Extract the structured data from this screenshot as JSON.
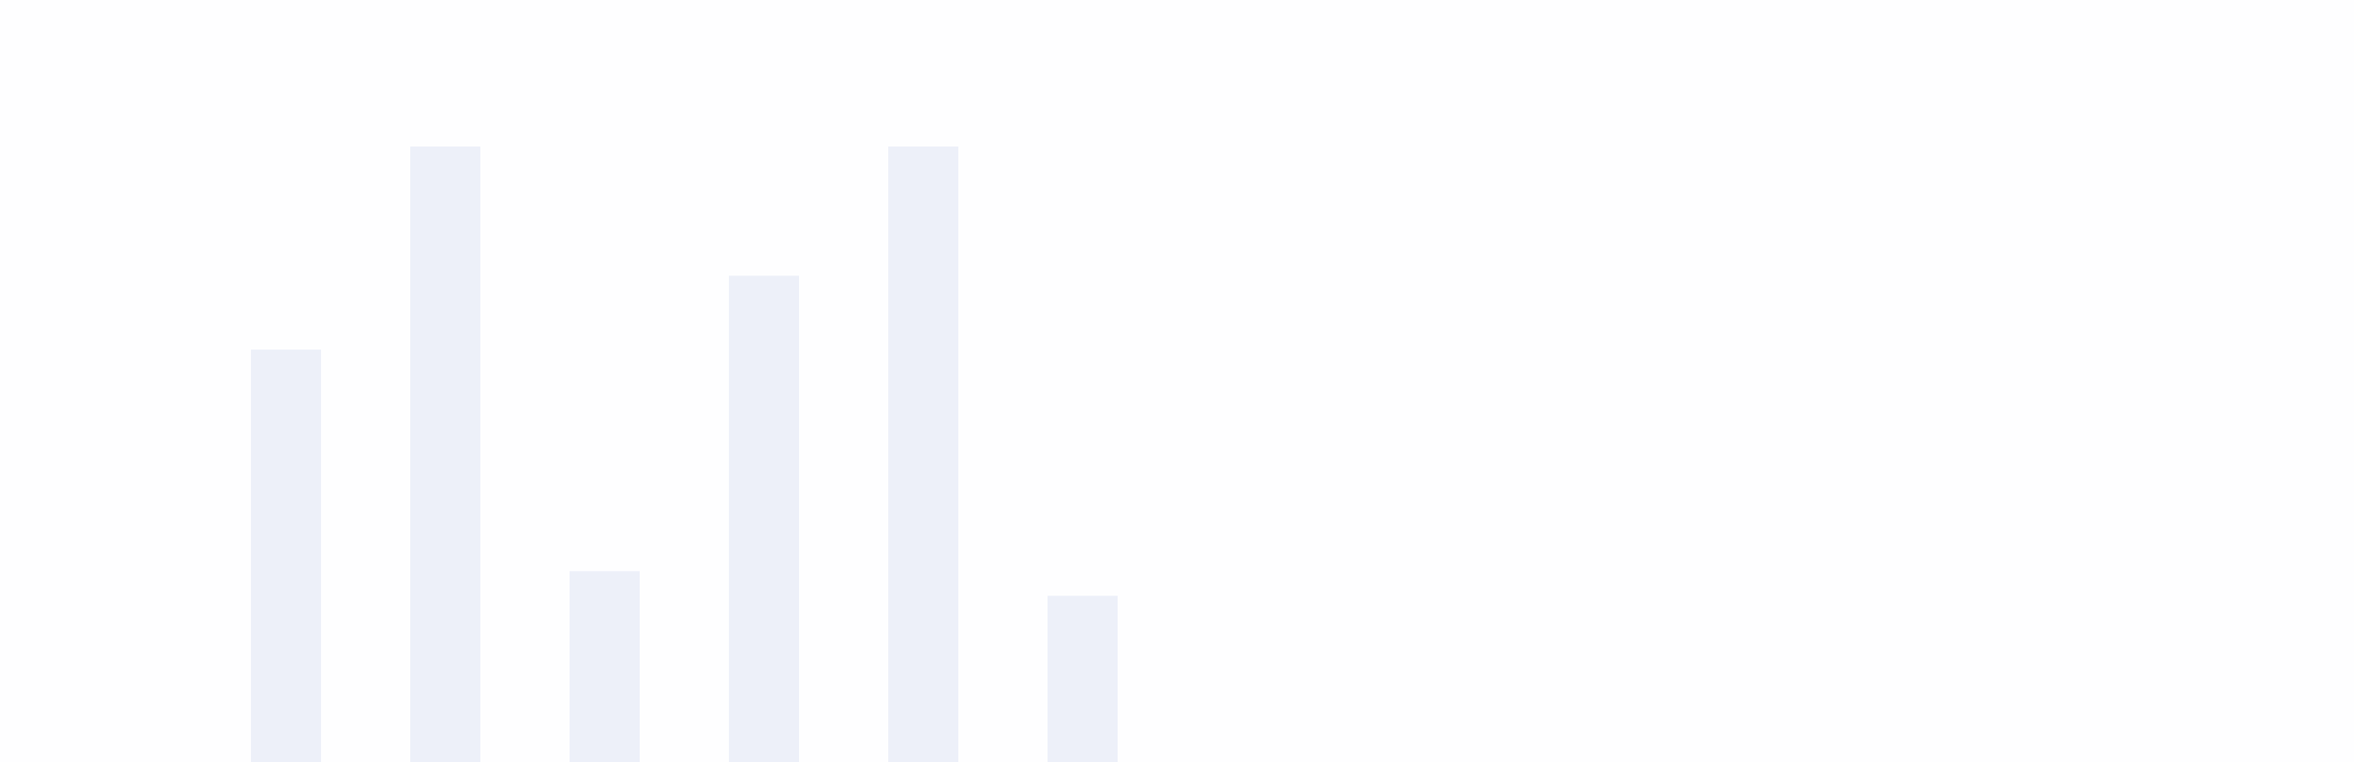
{
  "chart_data": {
    "type": "bar",
    "categories": [
      null,
      null,
      null,
      null,
      null,
      null
    ],
    "values": [
      67,
      100,
      31,
      79,
      100,
      27
    ],
    "color": "#edf0f9",
    "ylim": [
      0,
      100
    ]
  }
}
